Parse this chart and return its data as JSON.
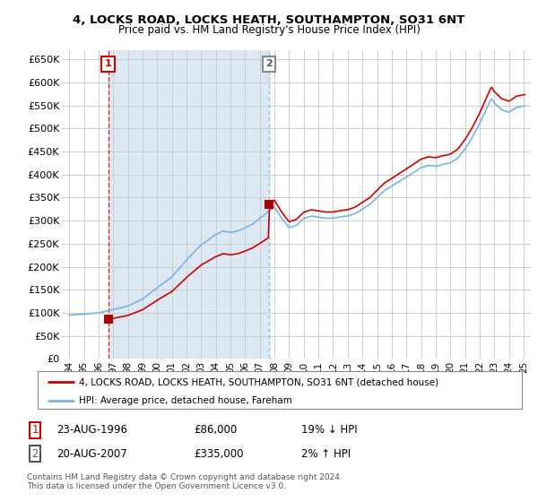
{
  "title_line1": "4, LOCKS ROAD, LOCKS HEATH, SOUTHAMPTON, SO31 6NT",
  "title_line2": "Price paid vs. HM Land Registry's House Price Index (HPI)",
  "legend_label1": "4, LOCKS ROAD, LOCKS HEATH, SOUTHAMPTON, SO31 6NT (detached house)",
  "legend_label2": "HPI: Average price, detached house, Fareham",
  "annotation1_date": "23-AUG-1996",
  "annotation1_price": "£86,000",
  "annotation1_hpi": "19% ↓ HPI",
  "annotation2_date": "20-AUG-2007",
  "annotation2_price": "£335,000",
  "annotation2_hpi": "2% ↑ HPI",
  "footnote": "Contains HM Land Registry data © Crown copyright and database right 2024.\nThis data is licensed under the Open Government Licence v3.0.",
  "sale1_year": 1996.65,
  "sale1_price": 86000,
  "sale2_year": 2007.63,
  "sale2_price": 335000,
  "hpi_color": "#7ab3e0",
  "price_color": "#cc0000",
  "sale_marker_color": "#aa0000",
  "ylim_min": 0,
  "ylim_max": 670000,
  "xlim_min": 1993.5,
  "xlim_max": 2025.5,
  "background_hatch_color": "#e8eef5",
  "background_white": "#ffffff",
  "grid_color": "#cccccc",
  "shade_between_color": "#dde8f5"
}
